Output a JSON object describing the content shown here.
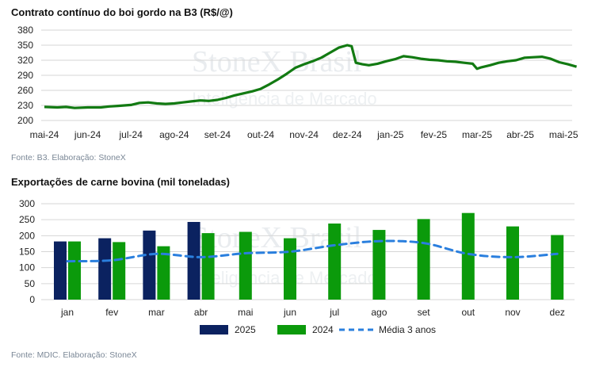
{
  "watermark": {
    "line1": "StoneX Brasil",
    "line2": "Inteligência de Mercado"
  },
  "colors": {
    "green": "#0b9a0b",
    "line_green": "#127a12",
    "navy": "#0b2260",
    "dash": "#2a7fde",
    "grid": "#d6d6d6"
  },
  "chart1": {
    "title": "Contrato contínuo do boi gordo na B3 (R$/@)",
    "source": "Fonte: B3. Elaboração: StoneX"
  },
  "chart2": {
    "title": "Exportações de carne bovina (mil toneladas)",
    "source": "Fonte: MDIC. Elaboração: StoneX"
  },
  "chart_data": [
    {
      "type": "line",
      "title": "Contrato contínuo do boi gordo na B3 (R$/@)",
      "ylim": [
        200,
        380
      ],
      "yticks": [
        200,
        230,
        260,
        290,
        320,
        350,
        380
      ],
      "categories": [
        "mai-24",
        "jun-24",
        "jul-24",
        "ago-24",
        "set-24",
        "out-24",
        "nov-24",
        "dez-24",
        "jan-25",
        "fev-25",
        "mar-25",
        "abr-25",
        "mai-25"
      ],
      "series": [
        {
          "values": [
            [
              0,
              227
            ],
            [
              0.3,
              226
            ],
            [
              0.5,
              227
            ],
            [
              0.7,
              225
            ],
            [
              1.0,
              226
            ],
            [
              1.3,
              226
            ],
            [
              1.5,
              228
            ],
            [
              1.7,
              229
            ],
            [
              2.0,
              231
            ],
            [
              2.2,
              235
            ],
            [
              2.4,
              236
            ],
            [
              2.6,
              234
            ],
            [
              2.8,
              233
            ],
            [
              3.0,
              234
            ],
            [
              3.2,
              236
            ],
            [
              3.4,
              238
            ],
            [
              3.6,
              240
            ],
            [
              3.8,
              239
            ],
            [
              4.0,
              241
            ],
            [
              4.2,
              245
            ],
            [
              4.4,
              250
            ],
            [
              4.6,
              254
            ],
            [
              4.8,
              258
            ],
            [
              5.0,
              263
            ],
            [
              5.2,
              272
            ],
            [
              5.4,
              282
            ],
            [
              5.6,
              293
            ],
            [
              5.8,
              305
            ],
            [
              6.0,
              312
            ],
            [
              6.2,
              318
            ],
            [
              6.4,
              325
            ],
            [
              6.6,
              335
            ],
            [
              6.8,
              345
            ],
            [
              7.0,
              350
            ],
            [
              7.1,
              348
            ],
            [
              7.2,
              315
            ],
            [
              7.35,
              312
            ],
            [
              7.5,
              310
            ],
            [
              7.7,
              313
            ],
            [
              7.9,
              318
            ],
            [
              8.1,
              322
            ],
            [
              8.3,
              328
            ],
            [
              8.5,
              326
            ],
            [
              8.7,
              323
            ],
            [
              8.9,
              321
            ],
            [
              9.1,
              320
            ],
            [
              9.3,
              318
            ],
            [
              9.5,
              317
            ],
            [
              9.7,
              315
            ],
            [
              9.9,
              313
            ],
            [
              10.0,
              303
            ],
            [
              10.1,
              306
            ],
            [
              10.3,
              310
            ],
            [
              10.5,
              315
            ],
            [
              10.7,
              318
            ],
            [
              10.9,
              320
            ],
            [
              11.1,
              325
            ],
            [
              11.3,
              326
            ],
            [
              11.5,
              327
            ],
            [
              11.7,
              323
            ],
            [
              11.9,
              316
            ],
            [
              12.1,
              312
            ],
            [
              12.3,
              307
            ]
          ]
        }
      ]
    },
    {
      "type": "bar",
      "title": "Exportações de carne bovina (mil toneladas)",
      "ylim": [
        0,
        300
      ],
      "yticks": [
        0,
        50,
        100,
        150,
        200,
        250,
        300
      ],
      "categories": [
        "jan",
        "fev",
        "mar",
        "abr",
        "mai",
        "jun",
        "jul",
        "ago",
        "set",
        "out",
        "nov",
        "dez"
      ],
      "legend_position": "bottom",
      "series": [
        {
          "name": "2025",
          "kind": "bar",
          "color": "#0b2260",
          "values": [
            182,
            192,
            216,
            243,
            null,
            null,
            null,
            null,
            null,
            null,
            null,
            null
          ]
        },
        {
          "name": "2024",
          "kind": "bar",
          "color": "#0b9a0b",
          "values": [
            182,
            180,
            167,
            208,
            212,
            192,
            238,
            218,
            252,
            271,
            229,
            202
          ]
        },
        {
          "name": "Média 3 anos",
          "kind": "dashed-line",
          "color": "#2a7fde",
          "values": [
            120,
            123,
            143,
            133,
            145,
            150,
            170,
            183,
            177,
            143,
            133,
            143
          ]
        }
      ]
    }
  ]
}
